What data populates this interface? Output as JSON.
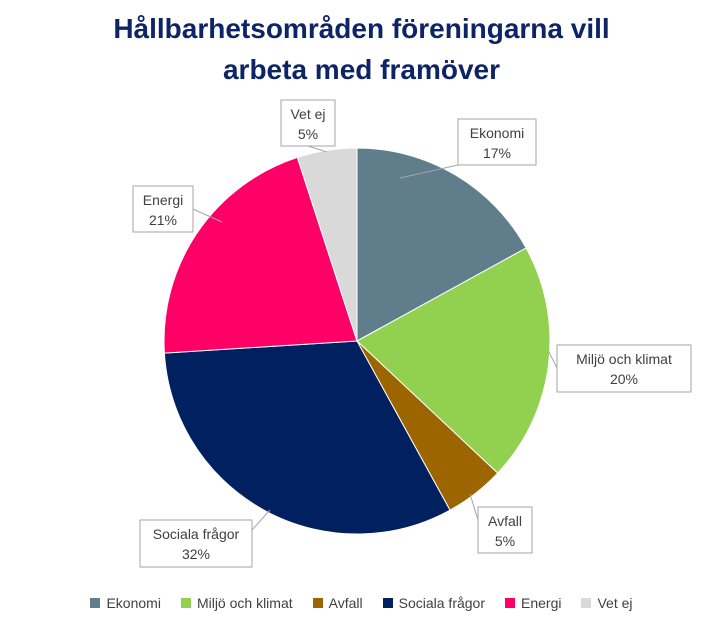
{
  "chart_data": {
    "type": "pie",
    "title_lines": [
      "Hållbarhetsområden föreningarna vill",
      "arbeta med framöver"
    ],
    "slices": [
      {
        "name": "Ekonomi",
        "value": 17,
        "label": "17%",
        "color": "#607d8b"
      },
      {
        "name": "Miljö och klimat",
        "value": 20,
        "label": "20%",
        "color": "#92d050"
      },
      {
        "name": "Avfall",
        "value": 5,
        "label": "5%",
        "color": "#9c6500"
      },
      {
        "name": "Sociala frågor",
        "value": 32,
        "label": "32%",
        "color": "#002060"
      },
      {
        "name": "Energi",
        "value": 21,
        "label": "21%",
        "color": "#ff0066"
      },
      {
        "name": "Vet ej",
        "value": 5,
        "label": "5%",
        "color": "#d9d9d9"
      }
    ],
    "legend_position": "bottom"
  }
}
